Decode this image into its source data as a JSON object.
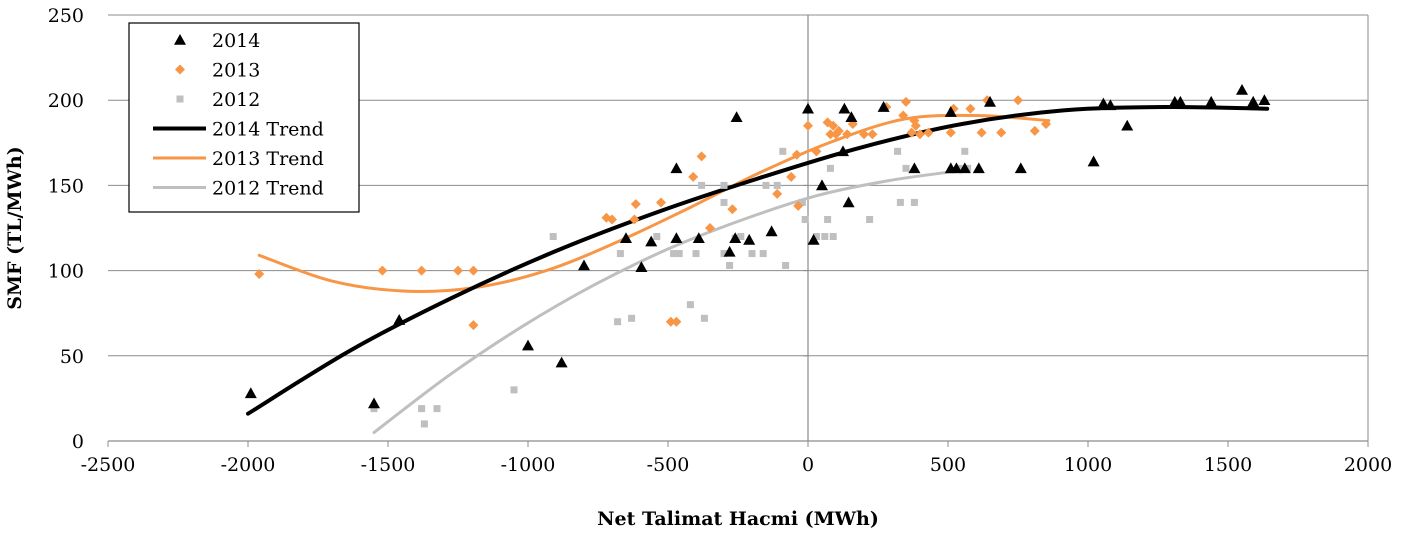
{
  "chart_data": {
    "type": "scatter",
    "xlabel": "Net Talimat Hacmi (MWh)",
    "ylabel": "SMF (TL/MWh)",
    "xlim": [
      -2500,
      2000
    ],
    "ylim": [
      0,
      250
    ],
    "x_ticks": [
      "-2500",
      "-2000",
      "-1500",
      "-1000",
      "-500",
      "0",
      "500",
      "1000",
      "1500",
      "2000"
    ],
    "y_ticks": [
      "0",
      "50",
      "100",
      "150",
      "200",
      "250"
    ],
    "grid": "horizontal major gridlines",
    "legend_position": "top-left",
    "colors": {
      "2014": "#000000",
      "2013": "#f79646",
      "2012": "#bfbfbf"
    },
    "series": [
      {
        "name": "2014",
        "marker": "triangle",
        "color": "#000000",
        "points": [
          [
            -1990,
            28
          ],
          [
            -1550,
            22
          ],
          [
            -1460,
            71
          ],
          [
            -1000,
            56
          ],
          [
            -880,
            46
          ],
          [
            -800,
            103
          ],
          [
            -650,
            119
          ],
          [
            -595,
            102
          ],
          [
            -560,
            117
          ],
          [
            -470,
            160
          ],
          [
            -470,
            119
          ],
          [
            -390,
            119
          ],
          [
            -280,
            111
          ],
          [
            -260,
            119
          ],
          [
            -255,
            190
          ],
          [
            -210,
            118
          ],
          [
            -130,
            123
          ],
          [
            0,
            195
          ],
          [
            20,
            118
          ],
          [
            50,
            150
          ],
          [
            125,
            170
          ],
          [
            130,
            195
          ],
          [
            145,
            140
          ],
          [
            155,
            190
          ],
          [
            270,
            196
          ],
          [
            380,
            160
          ],
          [
            510,
            193
          ],
          [
            510,
            160
          ],
          [
            530,
            160
          ],
          [
            560,
            160
          ],
          [
            610,
            160
          ],
          [
            650,
            199
          ],
          [
            760,
            160
          ],
          [
            1020,
            164
          ],
          [
            1055,
            198
          ],
          [
            1080,
            197
          ],
          [
            1140,
            185
          ],
          [
            1310,
            199
          ],
          [
            1330,
            199
          ],
          [
            1440,
            199
          ],
          [
            1550,
            206
          ],
          [
            1590,
            199
          ],
          [
            1630,
            200
          ]
        ]
      },
      {
        "name": "2013",
        "marker": "diamond",
        "color": "#f79646",
        "points": [
          [
            -1960,
            98
          ],
          [
            -1520,
            100
          ],
          [
            -1380,
            100
          ],
          [
            -1250,
            100
          ],
          [
            -1195,
            100
          ],
          [
            -1195,
            68
          ],
          [
            -720,
            131
          ],
          [
            -700,
            130
          ],
          [
            -620,
            130
          ],
          [
            -615,
            139
          ],
          [
            -525,
            140
          ],
          [
            -490,
            70
          ],
          [
            -470,
            70
          ],
          [
            -410,
            155
          ],
          [
            -380,
            167
          ],
          [
            -350,
            125
          ],
          [
            -270,
            136
          ],
          [
            -110,
            145
          ],
          [
            -60,
            155
          ],
          [
            -40,
            168
          ],
          [
            -35,
            138
          ],
          [
            0,
            185
          ],
          [
            30,
            170
          ],
          [
            70,
            187
          ],
          [
            80,
            180
          ],
          [
            90,
            185
          ],
          [
            100,
            180
          ],
          [
            110,
            182
          ],
          [
            140,
            180
          ],
          [
            160,
            186
          ],
          [
            200,
            180
          ],
          [
            230,
            180
          ],
          [
            280,
            196
          ],
          [
            340,
            191
          ],
          [
            350,
            199
          ],
          [
            370,
            181
          ],
          [
            380,
            188
          ],
          [
            385,
            185
          ],
          [
            400,
            180
          ],
          [
            430,
            181
          ],
          [
            510,
            181
          ],
          [
            520,
            195
          ],
          [
            580,
            195
          ],
          [
            620,
            181
          ],
          [
            640,
            200
          ],
          [
            690,
            181
          ],
          [
            750,
            200
          ],
          [
            810,
            182
          ],
          [
            850,
            186
          ]
        ]
      },
      {
        "name": "2012",
        "marker": "square",
        "color": "#bfbfbf",
        "points": [
          [
            -1550,
            19
          ],
          [
            -1380,
            19
          ],
          [
            -1370,
            10
          ],
          [
            -1325,
            19
          ],
          [
            -1050,
            30
          ],
          [
            -910,
            120
          ],
          [
            -680,
            70
          ],
          [
            -670,
            110
          ],
          [
            -630,
            72
          ],
          [
            -540,
            120
          ],
          [
            -480,
            110
          ],
          [
            -460,
            110
          ],
          [
            -420,
            80
          ],
          [
            -400,
            110
          ],
          [
            -380,
            150
          ],
          [
            -370,
            72
          ],
          [
            -300,
            150
          ],
          [
            -300,
            140
          ],
          [
            -300,
            110
          ],
          [
            -280,
            103
          ],
          [
            -260,
            119
          ],
          [
            -240,
            120
          ],
          [
            -200,
            110
          ],
          [
            -160,
            110
          ],
          [
            -150,
            150
          ],
          [
            -110,
            150
          ],
          [
            -90,
            170
          ],
          [
            -80,
            103
          ],
          [
            -20,
            140
          ],
          [
            -10,
            130
          ],
          [
            30,
            120
          ],
          [
            60,
            120
          ],
          [
            70,
            130
          ],
          [
            80,
            160
          ],
          [
            90,
            120
          ],
          [
            220,
            130
          ],
          [
            320,
            170
          ],
          [
            330,
            140
          ],
          [
            350,
            160
          ],
          [
            380,
            140
          ],
          [
            540,
            160
          ],
          [
            560,
            170
          ],
          [
            570,
            160
          ]
        ]
      }
    ],
    "trend_series": [
      {
        "name": "2014 Trend",
        "color": "#000000",
        "width": 4,
        "x_range": [
          -2000,
          1640
        ],
        "y_values": [
          16,
          53,
          84,
          111,
          134,
          154,
          172,
          186,
          194,
          196,
          195
        ]
      },
      {
        "name": "2013 Trend",
        "color": "#f79646",
        "width": 3,
        "x_range": [
          -1960,
          860
        ],
        "y_values": [
          109,
          94,
          88,
          90,
          100,
          117,
          137,
          158,
          176,
          189,
          191,
          188
        ]
      },
      {
        "name": "2012 Trend",
        "color": "#bfbfbf",
        "width": 3,
        "x_range": [
          -1550,
          560
        ],
        "y_values": [
          5,
          38,
          67,
          92,
          113,
          130,
          144,
          153,
          159
        ]
      }
    ],
    "legend": {
      "entries": [
        {
          "label": "2014",
          "kind": "triangle",
          "color": "#000000"
        },
        {
          "label": "2013",
          "kind": "diamond",
          "color": "#f79646"
        },
        {
          "label": "2012",
          "kind": "square",
          "color": "#bfbfbf"
        },
        {
          "label": "2014 Trend",
          "kind": "line",
          "color": "#000000",
          "width": 4
        },
        {
          "label": "2013 Trend",
          "kind": "line",
          "color": "#f79646",
          "width": 3
        },
        {
          "label": "2012 Trend",
          "kind": "line",
          "color": "#bfbfbf",
          "width": 3
        }
      ]
    }
  }
}
